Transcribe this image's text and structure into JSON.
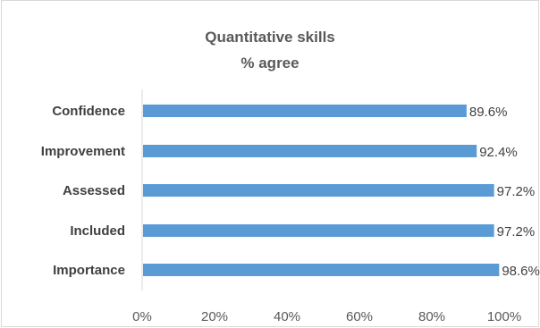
{
  "chart_data": {
    "type": "bar",
    "orientation": "horizontal",
    "title": "Quantitative skills",
    "subtitle": "% agree",
    "categories": [
      "Confidence",
      "Improvement",
      "Assessed",
      "Included",
      "Importance"
    ],
    "values": [
      89.6,
      92.4,
      97.2,
      97.2,
      98.6
    ],
    "data_labels": [
      "89.6%",
      "92.4%",
      "97.2%",
      "97.2%",
      "98.6%"
    ],
    "xlim": [
      0,
      100
    ],
    "x_ticks": [
      0,
      20,
      40,
      60,
      80,
      100
    ],
    "x_tick_labels": [
      "0%",
      "20%",
      "40%",
      "60%",
      "80%",
      "100%"
    ],
    "grid": false,
    "legend": "none",
    "bar_color": "#5b9bd5",
    "xlabel": "",
    "ylabel": ""
  }
}
